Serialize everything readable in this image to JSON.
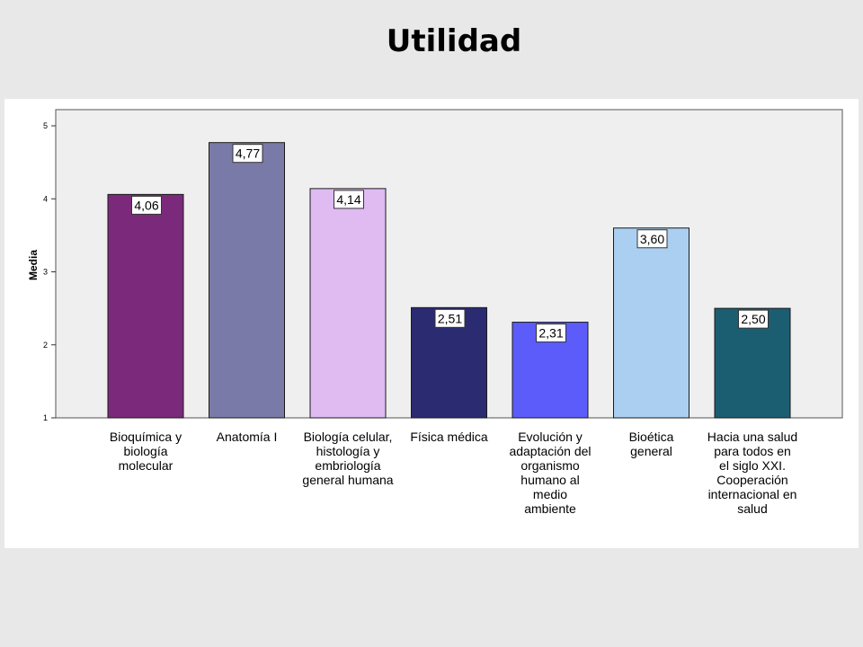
{
  "slide": {
    "title": "Utilidad"
  },
  "chart_data": {
    "type": "bar",
    "title": "",
    "xlabel": "",
    "ylabel": "Media",
    "ylim": [
      1,
      5
    ],
    "yticks": [
      "1",
      "2",
      "3",
      "4",
      "5"
    ],
    "grid": false,
    "categories": [
      [
        "Bioquímica y",
        "biología",
        "molecular"
      ],
      [
        "Anatomía I"
      ],
      [
        "Biología celular,",
        "histología y",
        "embriología",
        "general humana"
      ],
      [
        "Física médica"
      ],
      [
        "Evolución y",
        "adaptación del",
        "organismo",
        "humano al",
        "medio",
        "ambiente"
      ],
      [
        "Bioética",
        "general"
      ],
      [
        "Hacia una salud",
        "para todos en",
        "el siglo XXI.",
        "Cooperación",
        "internacional en",
        "salud"
      ]
    ],
    "values": [
      4.06,
      4.77,
      4.14,
      2.51,
      2.31,
      3.6,
      2.5
    ],
    "value_labels": [
      "4,06",
      "4,77",
      "4,14",
      "2,51",
      "2,31",
      "3,60",
      "2,50"
    ],
    "colors": [
      "#7b2a7b",
      "#7a7aa8",
      "#dfbbf2",
      "#2b2b72",
      "#5c5cfa",
      "#abcff0",
      "#1b5e72"
    ],
    "plot_background": "#efefef"
  }
}
